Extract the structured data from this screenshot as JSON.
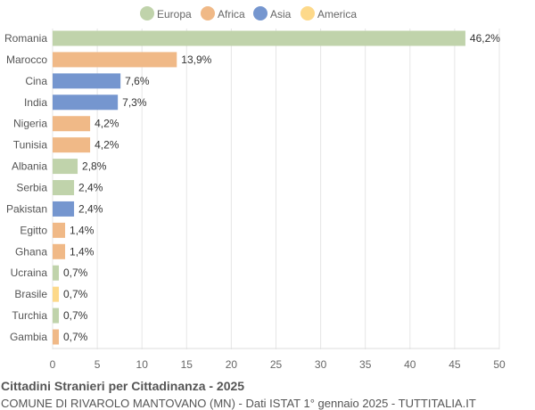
{
  "chart_data": {
    "type": "bar",
    "orientation": "horizontal",
    "title": "Cittadini Stranieri per Cittadinanza - 2025",
    "subtitle": "COMUNE DI RIVAROLO MANTOVANO (MN) - Dati ISTAT 1° gennaio 2025 - TUTTITALIA.IT",
    "legend": [
      {
        "name": "Europa",
        "color": "#c0d3ab"
      },
      {
        "name": "Africa",
        "color": "#f0b987"
      },
      {
        "name": "Asia",
        "color": "#7596cf"
      },
      {
        "name": "America",
        "color": "#fdd98a"
      }
    ],
    "legend_position": "top",
    "categories": [
      "Romania",
      "Marocco",
      "Cina",
      "India",
      "Nigeria",
      "Tunisia",
      "Albania",
      "Serbia",
      "Pakistan",
      "Egitto",
      "Ghana",
      "Ucraina",
      "Brasile",
      "Turchia",
      "Gambia"
    ],
    "values": [
      46.2,
      13.9,
      7.6,
      7.3,
      4.2,
      4.2,
      2.8,
      2.4,
      2.4,
      1.4,
      1.4,
      0.7,
      0.7,
      0.7,
      0.7
    ],
    "labels": [
      "46,2%",
      "13,9%",
      "7,6%",
      "7,3%",
      "4,2%",
      "4,2%",
      "2,8%",
      "2,4%",
      "2,4%",
      "1,4%",
      "1,4%",
      "0,7%",
      "0,7%",
      "0,7%",
      "0,7%"
    ],
    "groups": [
      "Europa",
      "Africa",
      "Asia",
      "Asia",
      "Africa",
      "Africa",
      "Europa",
      "Europa",
      "Asia",
      "Africa",
      "Africa",
      "Europa",
      "America",
      "Europa",
      "Africa"
    ],
    "xlim": [
      0,
      50
    ],
    "xticks": [
      "0",
      "5",
      "10",
      "15",
      "20",
      "25",
      "30",
      "35",
      "40",
      "45",
      "50"
    ],
    "grid": true
  }
}
